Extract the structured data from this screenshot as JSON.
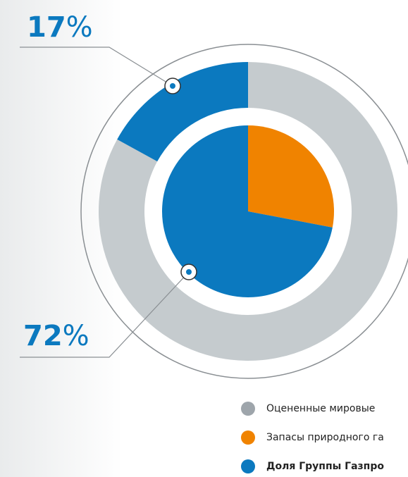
{
  "chart_data": {
    "type": "pie",
    "rings": [
      {
        "values": [
          83,
          17
        ],
        "colors": [
          "#c5cbce",
          "#0b79bf"
        ],
        "value_labels": [
          null,
          "17%"
        ]
      },
      {
        "values": [
          28,
          72
        ],
        "colors": [
          "#f08300",
          "#0b79bf"
        ],
        "value_labels": [
          null,
          "72%"
        ]
      }
    ],
    "legend": [
      {
        "name": "Оцененные мировые",
        "color": "#9ea5ab"
      },
      {
        "name": "Запасы природного га",
        "color": "#f08300"
      },
      {
        "name": "Доля Группы Газпро",
        "color": "#0b79bf"
      }
    ]
  }
}
